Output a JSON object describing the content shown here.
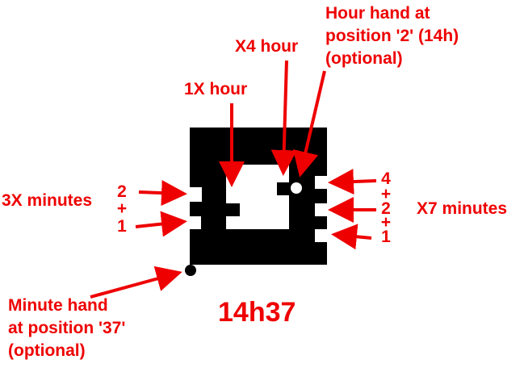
{
  "colors": {
    "annotation": "#ee0000",
    "clock_face": "#000000",
    "background": "#ffffff",
    "marker_fill": "#ffffff"
  },
  "labels": {
    "hour_hand_note": "Hour hand at\nposition '2' (14h)\n(optional)",
    "x4_hour": "X4 hour",
    "x1_hour": "1X hour",
    "x3_minutes": "3X minutes",
    "x7_minutes": "X7 minutes",
    "minute_hand_note": "Minute hand\nat position '37'\n(optional)",
    "time_readout": "14h37"
  },
  "left_digits": {
    "top": "2",
    "plus": "+",
    "bottom": "1"
  },
  "right_digits": {
    "four": "4",
    "plus_a": "+",
    "two": "2",
    "plus_b": "+",
    "one": "1"
  }
}
